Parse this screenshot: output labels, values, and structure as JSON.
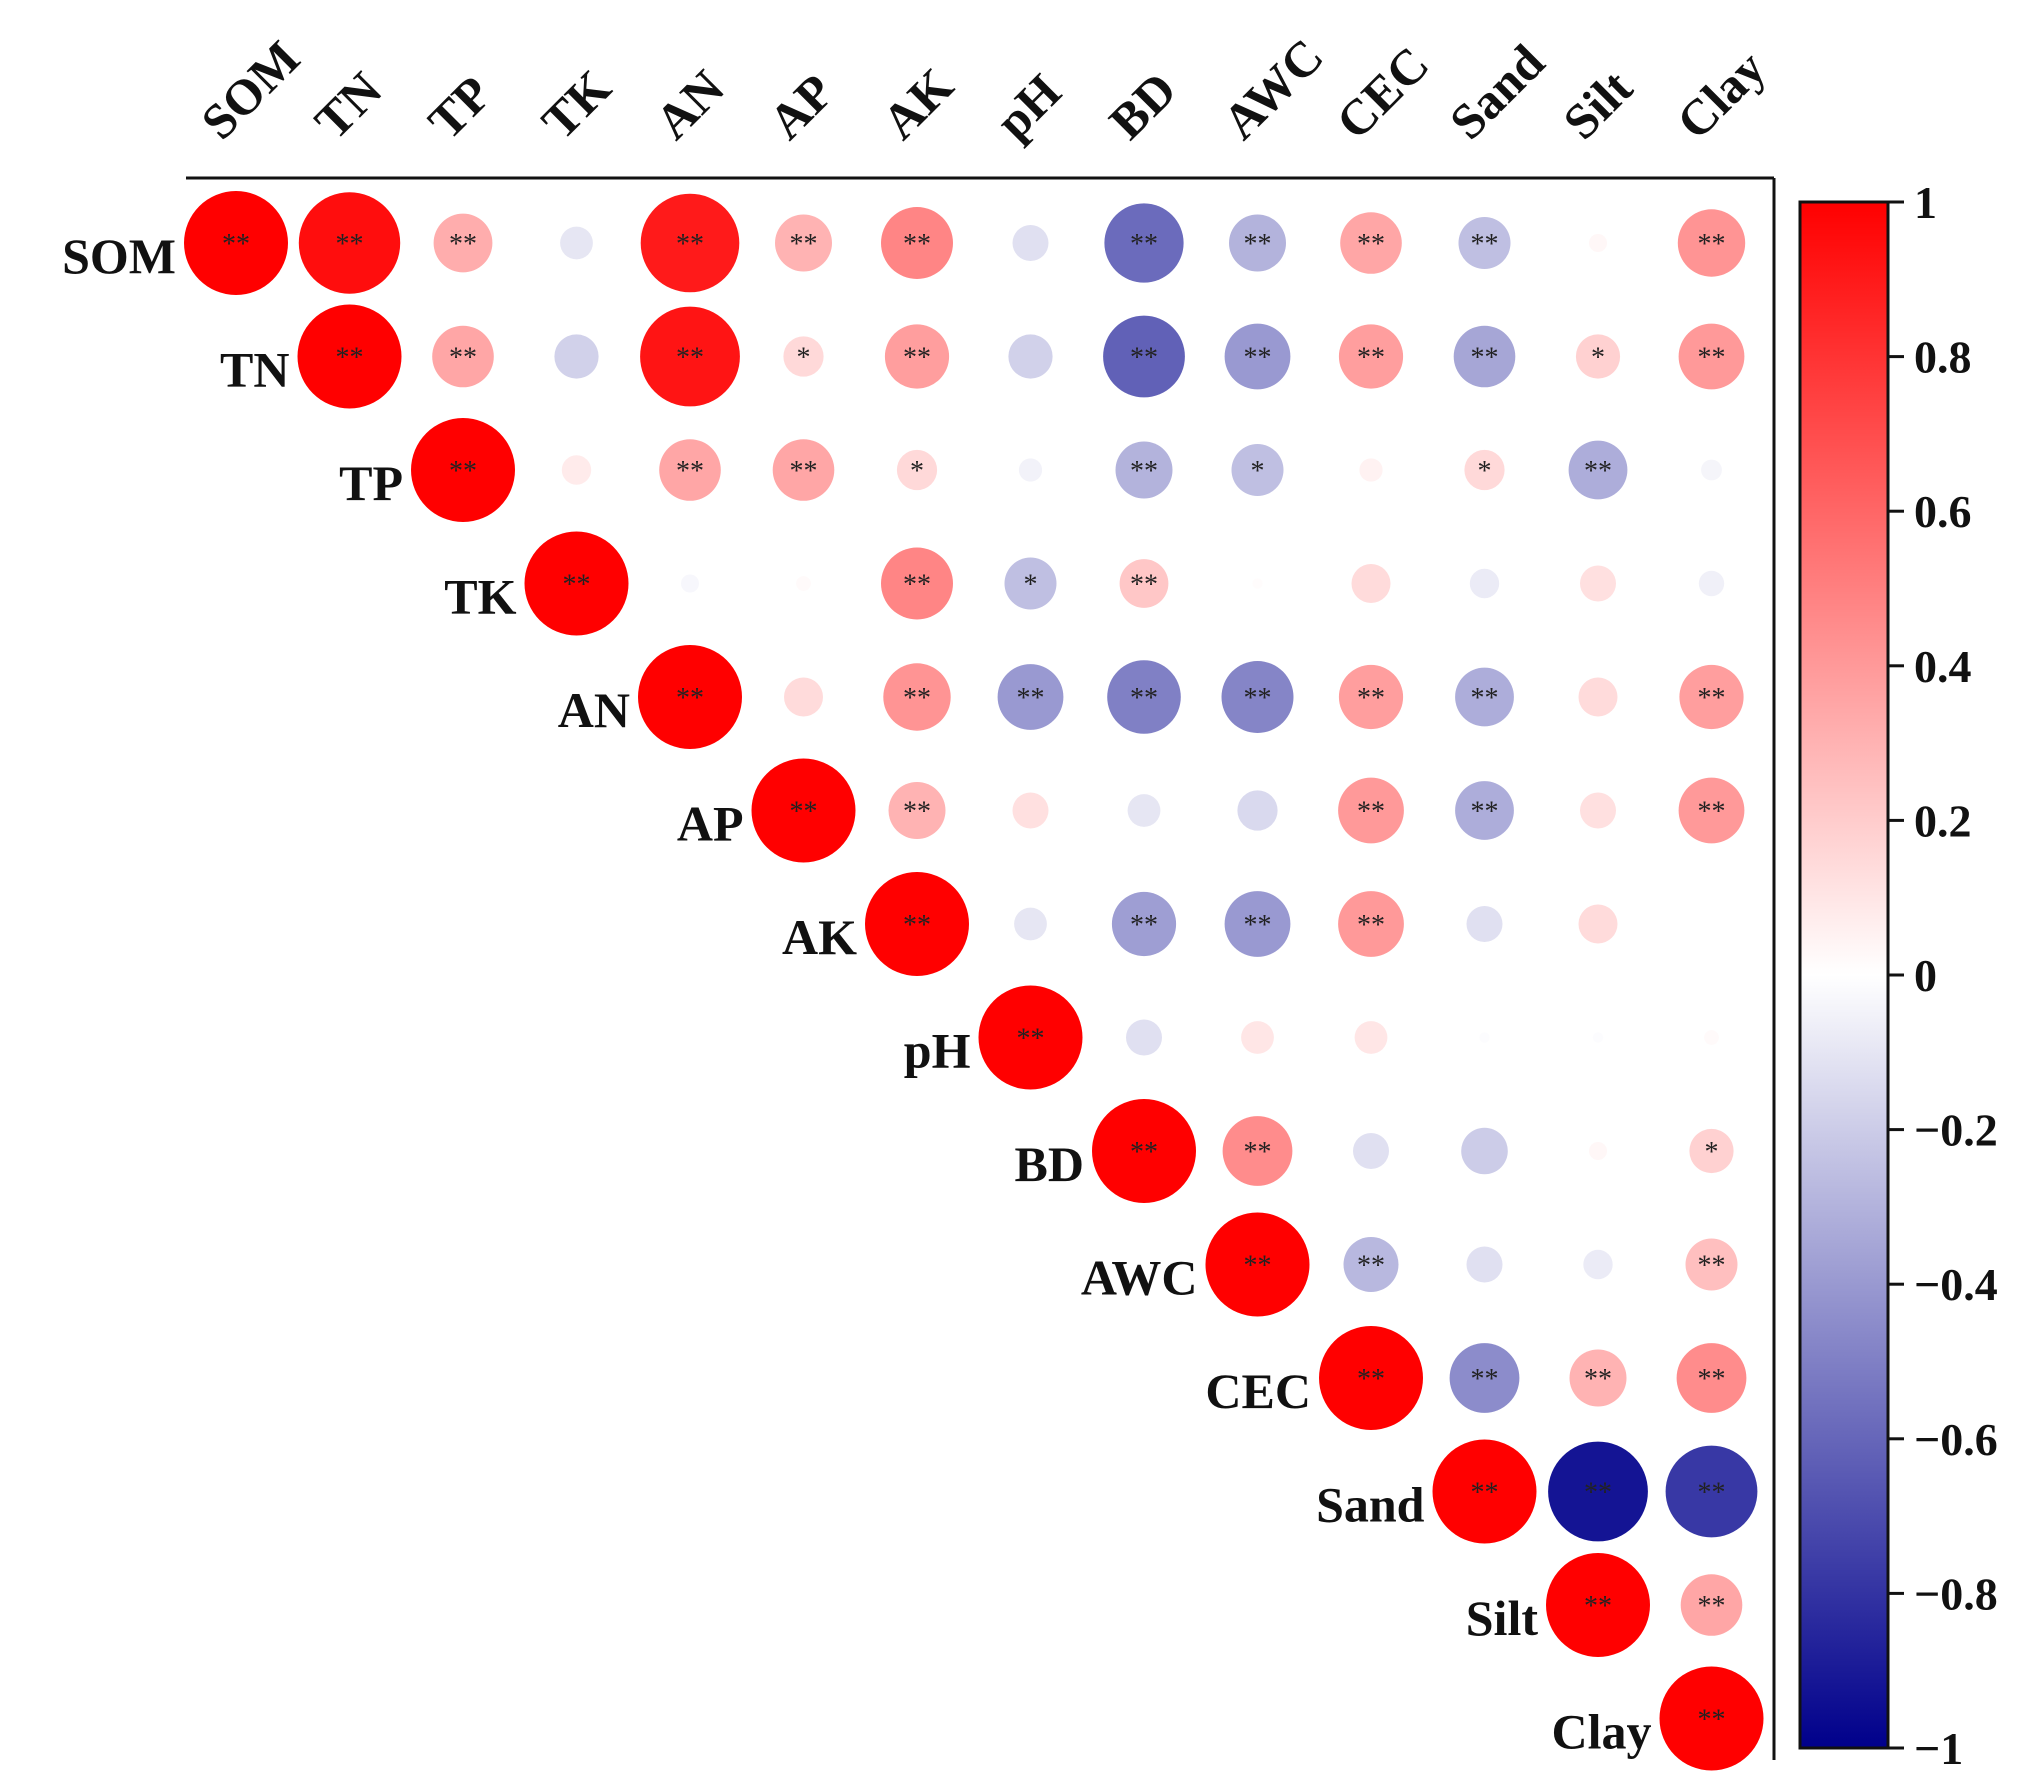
{
  "chart_data": {
    "type": "heatmap",
    "subtype": "correlation-circle-matrix",
    "title": "",
    "variables": [
      "SOM",
      "TN",
      "TP",
      "TK",
      "AN",
      "AP",
      "AK",
      "pH",
      "BD",
      "AWC",
      "CEC",
      "Sand",
      "Silt",
      "Clay"
    ],
    "matrix": [
      [
        1,
        0.95,
        0.32,
        -0.1,
        0.9,
        0.3,
        0.48,
        -0.12,
        -0.58,
        -0.3,
        0.35,
        -0.25,
        0.03,
        0.42
      ],
      [
        null,
        1,
        0.35,
        -0.18,
        0.92,
        0.15,
        0.38,
        -0.18,
        -0.62,
        -0.4,
        0.38,
        -0.35,
        0.18,
        0.4
      ],
      [
        null,
        null,
        1,
        0.08,
        0.35,
        0.35,
        0.15,
        -0.05,
        -0.3,
        -0.25,
        0.05,
        0.15,
        -0.32,
        -0.04
      ],
      [
        null,
        null,
        null,
        1,
        -0.03,
        0.02,
        0.48,
        -0.25,
        0.22,
        0.01,
        0.14,
        -0.08,
        0.12,
        -0.06
      ],
      [
        null,
        null,
        null,
        null,
        1,
        0.14,
        0.42,
        -0.4,
        -0.5,
        -0.48,
        0.38,
        -0.32,
        0.14,
        0.38
      ],
      [
        null,
        null,
        null,
        null,
        null,
        1,
        0.3,
        0.12,
        -0.1,
        -0.15,
        0.4,
        -0.32,
        0.12,
        0.4
      ],
      [
        null,
        null,
        null,
        null,
        null,
        null,
        1,
        -0.1,
        -0.38,
        -0.4,
        0.4,
        -0.12,
        0.14,
        null
      ],
      [
        null,
        null,
        null,
        null,
        null,
        null,
        null,
        1,
        -0.12,
        0.1,
        0.1,
        -0.01,
        -0.01,
        0.02
      ],
      [
        null,
        null,
        null,
        null,
        null,
        null,
        null,
        null,
        1,
        0.45,
        -0.12,
        -0.2,
        0.03,
        0.18
      ],
      [
        null,
        null,
        null,
        null,
        null,
        null,
        null,
        null,
        null,
        1,
        -0.28,
        -0.12,
        -0.08,
        0.25
      ],
      [
        null,
        null,
        null,
        null,
        null,
        null,
        null,
        null,
        null,
        null,
        1,
        -0.45,
        0.3,
        0.45
      ],
      [
        null,
        null,
        null,
        null,
        null,
        null,
        null,
        null,
        null,
        null,
        null,
        1,
        -0.92,
        -0.78
      ],
      [
        null,
        null,
        null,
        null,
        null,
        null,
        null,
        null,
        null,
        null,
        null,
        null,
        1,
        0.35
      ],
      [
        null,
        null,
        null,
        null,
        null,
        null,
        null,
        null,
        null,
        null,
        null,
        null,
        null,
        1
      ]
    ],
    "significance": [
      [
        "**",
        "**",
        "**",
        "",
        "**",
        "**",
        "**",
        "",
        "**",
        "**",
        "**",
        "**",
        "",
        "**"
      ],
      [
        "",
        "**",
        "**",
        "",
        "**",
        "*",
        "**",
        "",
        "**",
        "**",
        "**",
        "**",
        "*",
        "**"
      ],
      [
        "",
        "",
        "**",
        "",
        "**",
        "**",
        "*",
        "",
        "**",
        "*",
        "",
        "*",
        "**",
        ""
      ],
      [
        "",
        "",
        "",
        "**",
        "",
        "",
        "**",
        "*",
        "**",
        "",
        "",
        "",
        "",
        ""
      ],
      [
        "",
        "",
        "",
        "",
        "**",
        "",
        "**",
        "**",
        "**",
        "**",
        "**",
        "**",
        "",
        "**"
      ],
      [
        "",
        "",
        "",
        "",
        "",
        "**",
        "**",
        "",
        "",
        "",
        "**",
        "**",
        "",
        "**"
      ],
      [
        "",
        "",
        "",
        "",
        "",
        "",
        "**",
        "",
        "**",
        "**",
        "**",
        "",
        "",
        ""
      ],
      [
        "",
        "",
        "",
        "",
        "",
        "",
        "",
        "**",
        "",
        "",
        "",
        "",
        "",
        ""
      ],
      [
        "",
        "",
        "",
        "",
        "",
        "",
        "",
        "",
        "**",
        "**",
        "",
        "",
        "",
        "*"
      ],
      [
        "",
        "",
        "",
        "",
        "",
        "",
        "",
        "",
        "",
        "**",
        "**",
        "",
        "",
        "**"
      ],
      [
        "",
        "",
        "",
        "",
        "",
        "",
        "",
        "",
        "",
        "",
        "**",
        "**",
        "**",
        "**"
      ],
      [
        "",
        "",
        "",
        "",
        "",
        "",
        "",
        "",
        "",
        "",
        "",
        "**",
        "**",
        "**"
      ],
      [
        "",
        "",
        "",
        "",
        "",
        "",
        "",
        "",
        "",
        "",
        "",
        "",
        "**",
        "**"
      ],
      [
        "",
        "",
        "",
        "",
        "",
        "",
        "",
        "",
        "",
        "",
        "",
        "",
        "",
        "**"
      ]
    ],
    "colorbar": {
      "range": [
        -1,
        1
      ],
      "tick_labels": [
        "1",
        "0.8",
        "0.6",
        "0.4",
        "0.2",
        "0",
        "−0.2",
        "−0.4",
        "−0.6",
        "−0.8",
        "−1"
      ],
      "tick_values": [
        1,
        0.8,
        0.6,
        0.4,
        0.2,
        0,
        -0.2,
        -0.4,
        -0.6,
        -0.8,
        -1
      ],
      "color_positive": "#ff0000",
      "color_zero": "#ffffff",
      "color_negative": "#00008b",
      "position": "right"
    }
  }
}
